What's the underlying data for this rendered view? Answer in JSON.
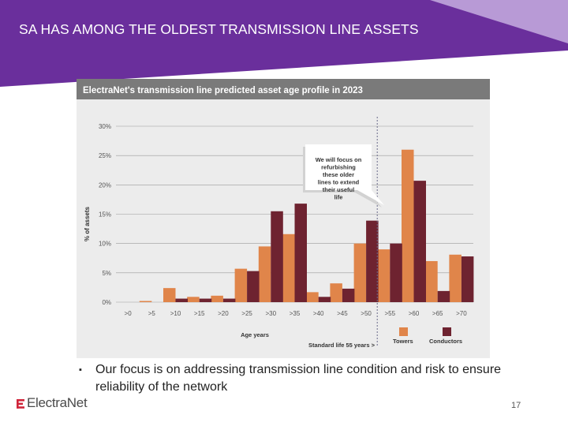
{
  "slide": {
    "title": "SA HAS AMONG THE OLDEST TRANSMISSION LINE ASSETS",
    "bullet": "Our focus is on addressing transmission line condition and risk to ensure reliability of the network",
    "logo": "ElectraNet",
    "page_number": "17"
  },
  "colors": {
    "banner_purple": "#6a2f9c",
    "banner_light": "#b89ad6",
    "header_grey": "#7a7a7a",
    "towers": "#e0854a",
    "conductors": "#6e2330",
    "logo_red": "#d0253a"
  },
  "chart_data": {
    "type": "bar",
    "title": "ElectraNet's transmission line predicted asset age profile in 2023",
    "categories": [
      ">0",
      ">5",
      ">10",
      ">15",
      ">20",
      ">25",
      ">30",
      ">35",
      ">40",
      ">45",
      ">50",
      ">55",
      ">60",
      ">65",
      ">70"
    ],
    "series": [
      {
        "name": "Towers",
        "values": [
          0,
          0.2,
          2.4,
          0.9,
          1.1,
          5.7,
          9.5,
          11.6,
          1.7,
          3.2,
          10.0,
          9.0,
          26.0,
          7.0,
          8.1
        ]
      },
      {
        "name": "Conductors",
        "values": [
          0,
          0,
          0.6,
          0.6,
          0.6,
          5.3,
          15.5,
          16.8,
          0.9,
          2.3,
          13.9,
          10.0,
          20.7,
          1.9,
          7.8
        ]
      }
    ],
    "yticks": [
      "0%",
      "5%",
      "10%",
      "15%",
      "20%",
      "25%",
      "30%"
    ],
    "ylim": [
      0,
      30
    ],
    "xlabel": "Age years",
    "ylabel": "% of assets",
    "grid": true,
    "legend_position": "bottom-right",
    "annotation": "We will focus on refurbishing these older lines to extend their useful life",
    "reference_label": "Standard life 55 years >",
    "reference_category_index": 11
  }
}
